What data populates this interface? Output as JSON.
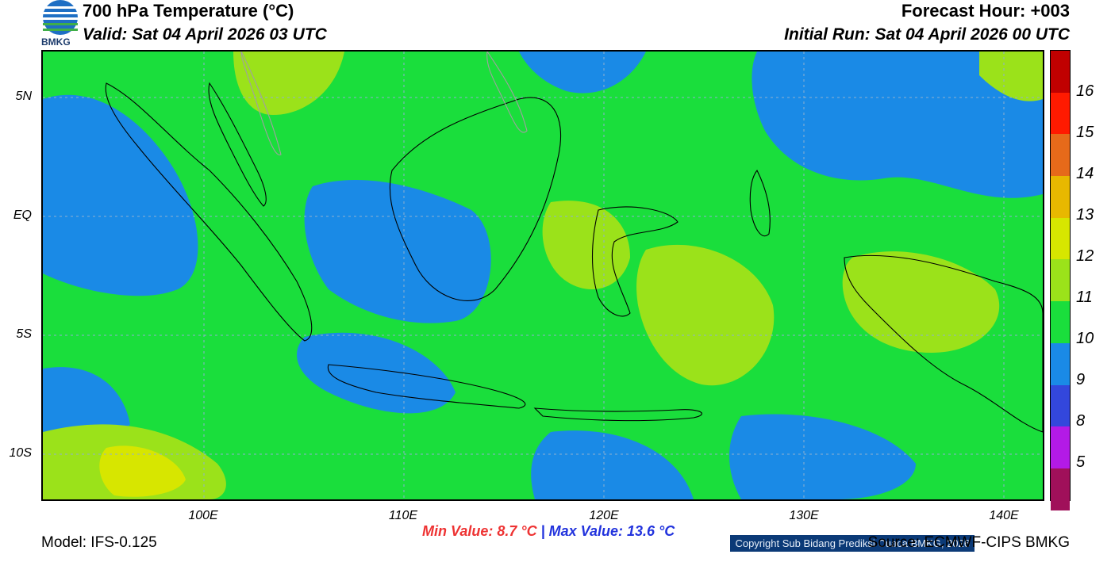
{
  "header": {
    "title": "700 hPa Temperature (°C)",
    "valid": "Valid: Sat 04 April 2026 03 UTC",
    "forecast_hour": "Forecast Hour: +003",
    "initial_run": "Initial Run: Sat 04 April 2026 00 UTC"
  },
  "logo": {
    "icon": "bmkg-logo-icon",
    "text": "BMKG"
  },
  "map": {
    "y_labels": [
      "5N",
      "EQ",
      "5S",
      "10S"
    ],
    "x_labels": [
      "100E",
      "110E",
      "120E",
      "130E",
      "140E"
    ],
    "copyright": "Copyright Sub Bidang Prediksi Cuaca BMKG, 2026"
  },
  "colorbar": {
    "labels": [
      "16",
      "15",
      "14",
      "13",
      "12",
      "11",
      "10",
      "9",
      "8",
      "5"
    ],
    "colors": [
      "#c00000",
      "#e00000",
      "#ff1a00",
      "#e66a1a",
      "#e8b800",
      "#d7e600",
      "#9be21a",
      "#1ade3c",
      "#1a8ae6",
      "#3347dc",
      "#b31ae6",
      "#a0105a"
    ]
  },
  "footer": {
    "model": "Model: IFS-0.125",
    "min": "Min Value: 8.7 °C",
    "separator": "|",
    "max": "Max Value: 13.6 °C",
    "source": "Source: ECMWF-CIPS BMKG"
  }
}
